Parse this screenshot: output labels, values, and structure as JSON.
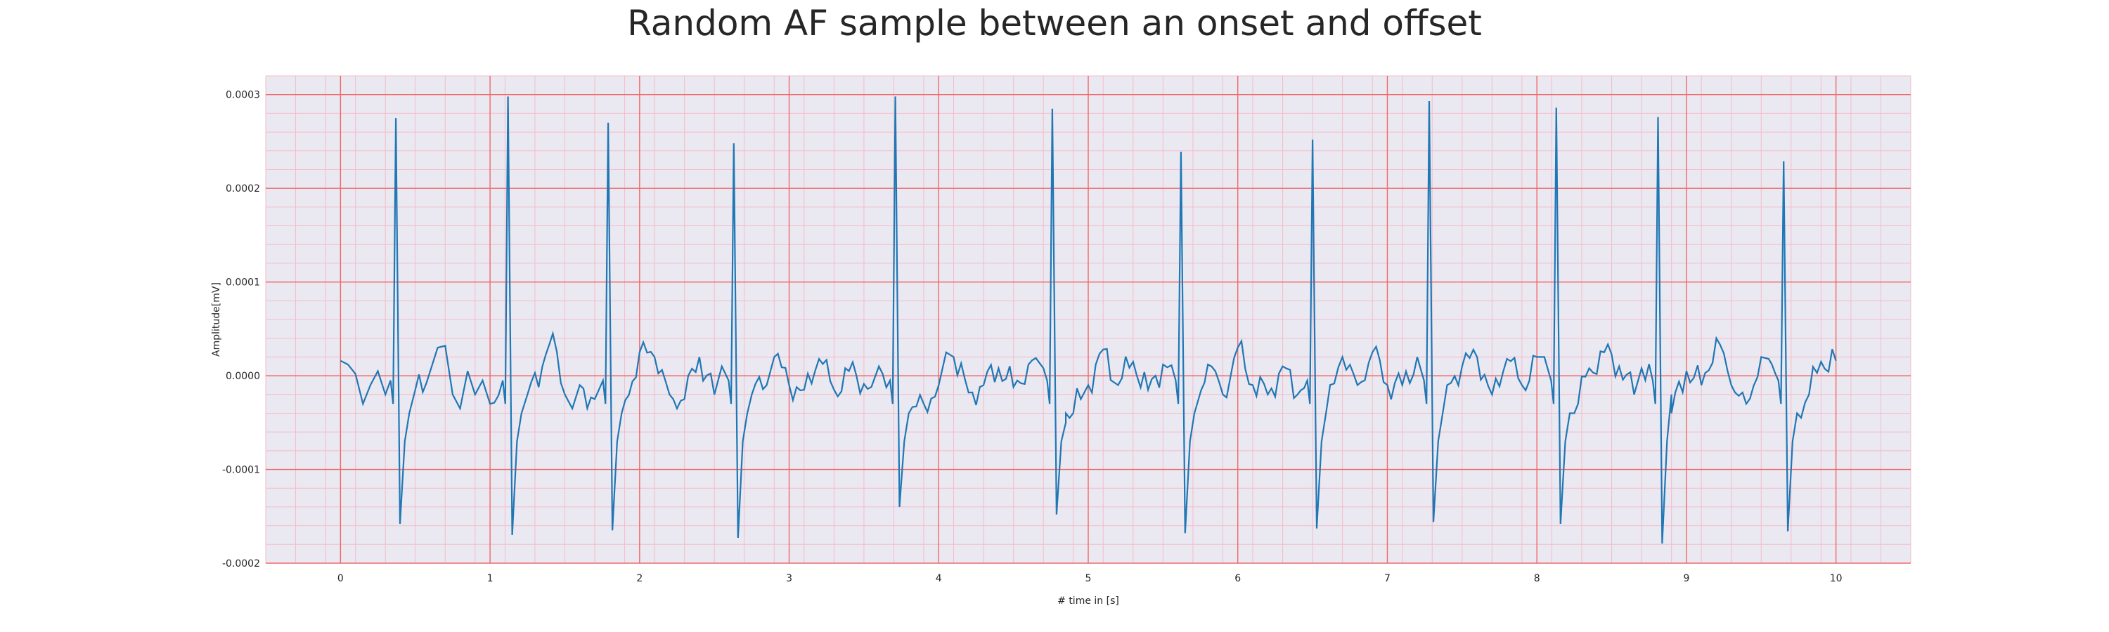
{
  "chart_data": {
    "type": "line",
    "title": "Random AF sample between an onset and offset",
    "xlabel": "# time in [s]",
    "ylabel": "Amplitude[mV]",
    "xlim": [
      -0.5,
      10.5
    ],
    "ylim": [
      -0.0002,
      0.00032
    ],
    "xticks": [
      0,
      1,
      2,
      3,
      4,
      5,
      6,
      7,
      8,
      9,
      10
    ],
    "xtick_labels": [
      "0",
      "1",
      "2",
      "3",
      "4",
      "5",
      "6",
      "7",
      "8",
      "9",
      "10"
    ],
    "yticks": [
      -0.0002,
      -0.0001,
      0.0,
      0.0001,
      0.0002,
      0.0003
    ],
    "ytick_labels": [
      "-0.0002",
      "-0.0001",
      "0.0000",
      "0.0001",
      "0.0002",
      "0.0003"
    ],
    "grid": true,
    "minor_grid": true,
    "background_color": "#eae8f1",
    "major_grid_color": "#f06868",
    "minor_grid_color": "#f5bcc8",
    "line_color": "#1f77b4",
    "beats": [
      {
        "t": 0.37,
        "peak": 0.000275,
        "trough": -0.000158
      },
      {
        "t": 1.12,
        "peak": 0.000298,
        "trough": -0.00017
      },
      {
        "t": 1.79,
        "peak": 0.00027,
        "trough": -0.000165
      },
      {
        "t": 2.63,
        "peak": 0.000248,
        "trough": -0.000173
      },
      {
        "t": 3.71,
        "peak": 0.000298,
        "trough": -0.00014
      },
      {
        "t": 4.76,
        "peak": 0.000285,
        "trough": -0.000148
      },
      {
        "t": 5.62,
        "peak": 0.000239,
        "trough": -0.000168
      },
      {
        "t": 6.5,
        "peak": 0.000252,
        "trough": -0.000163
      },
      {
        "t": 7.28,
        "peak": 0.000293,
        "trough": -0.000156
      },
      {
        "t": 8.13,
        "peak": 0.000286,
        "trough": -0.000158
      },
      {
        "t": 8.81,
        "peak": 0.000276,
        "trough": -0.000179
      },
      {
        "t": 9.65,
        "peak": 0.000229,
        "trough": -0.000166
      }
    ],
    "baseline_points": [
      [
        0.0,
        1.6e-05
      ],
      [
        0.05,
        1.2e-05
      ],
      [
        0.1,
        2e-06
      ],
      [
        0.15,
        -3e-05
      ],
      [
        0.2,
        -1e-05
      ],
      [
        0.25,
        5e-06
      ],
      [
        0.3,
        -2e-05
      ],
      [
        0.5,
        -1.5e-05
      ],
      [
        0.6,
        5e-06
      ],
      [
        0.65,
        3e-05
      ],
      [
        0.7,
        3.2e-05
      ],
      [
        0.75,
        -2e-05
      ],
      [
        0.8,
        -3.5e-05
      ],
      [
        0.85,
        5e-06
      ],
      [
        0.9,
        -2e-05
      ],
      [
        0.95,
        -5e-06
      ],
      [
        1.0,
        -3e-05
      ],
      [
        1.25,
        -2e-05
      ],
      [
        1.35,
        1e-05
      ],
      [
        1.42,
        4.5e-05
      ],
      [
        1.5,
        -2e-05
      ],
      [
        1.55,
        -3.5e-05
      ],
      [
        1.6,
        -1e-05
      ],
      [
        1.7,
        -2.5e-05
      ],
      [
        1.9,
        -2e-05
      ],
      [
        2.0,
        2.5e-05
      ],
      [
        2.1,
        2e-05
      ],
      [
        2.2,
        -2e-05
      ],
      [
        2.3,
        -2.5e-05
      ],
      [
        2.4,
        2e-05
      ],
      [
        2.5,
        -2e-05
      ],
      [
        2.55,
        1e-05
      ],
      [
        2.75,
        -2e-05
      ],
      [
        2.85,
        -1e-05
      ],
      [
        2.9,
        2e-05
      ],
      [
        3.0,
        -1e-05
      ],
      [
        3.1,
        -1.5e-05
      ],
      [
        3.2,
        1.8e-05
      ],
      [
        3.3,
        -1.5e-05
      ],
      [
        3.4,
        5e-06
      ],
      [
        3.55,
        -1.2e-05
      ],
      [
        3.6,
        1e-05
      ],
      [
        3.8,
        -4e-05
      ],
      [
        3.9,
        -3e-05
      ],
      [
        4.0,
        -1e-05
      ],
      [
        4.05,
        2.5e-05
      ],
      [
        4.1,
        2e-05
      ],
      [
        4.2,
        -1.8e-05
      ],
      [
        4.3,
        -1e-05
      ],
      [
        4.4,
        8e-06
      ],
      [
        4.5,
        -1.2e-05
      ],
      [
        4.6,
        1.2e-05
      ],
      [
        4.7,
        8e-06
      ],
      [
        4.85,
        -5e-05
      ],
      [
        4.95,
        -2.5e-05
      ],
      [
        5.0,
        -1e-05
      ],
      [
        5.1,
        2.8e-05
      ],
      [
        5.2,
        -1e-05
      ],
      [
        5.3,
        1.5e-05
      ],
      [
        5.4,
        -1.5e-05
      ],
      [
        5.5,
        1.2e-05
      ],
      [
        5.72,
        -2e-05
      ],
      [
        5.8,
        1.2e-05
      ],
      [
        5.9,
        -2e-05
      ],
      [
        6.0,
        3e-05
      ],
      [
        6.1,
        -1e-05
      ],
      [
        6.2,
        -2e-05
      ],
      [
        6.3,
        1e-05
      ],
      [
        6.4,
        -2e-05
      ],
      [
        6.6,
        -2e-05
      ],
      [
        6.7,
        2e-05
      ],
      [
        6.8,
        -1e-05
      ],
      [
        6.9,
        2.5e-05
      ],
      [
        7.0,
        -1e-05
      ],
      [
        7.1,
        -1e-05
      ],
      [
        7.2,
        2e-05
      ],
      [
        7.4,
        -1e-05
      ],
      [
        7.5,
        1e-05
      ],
      [
        7.6,
        2e-05
      ],
      [
        7.7,
        -2e-05
      ],
      [
        7.8,
        1.8e-05
      ],
      [
        7.9,
        -1e-05
      ],
      [
        8.0,
        2e-05
      ],
      [
        8.05,
        2e-05
      ],
      [
        8.25,
        -4e-05
      ],
      [
        8.35,
        8e-06
      ],
      [
        8.45,
        2.5e-05
      ],
      [
        8.55,
        1e-05
      ],
      [
        8.65,
        -2e-05
      ],
      [
        8.7,
        8e-06
      ],
      [
        8.9,
        -2e-05
      ],
      [
        9.0,
        5e-06
      ],
      [
        9.1,
        -1e-05
      ],
      [
        9.2,
        4e-05
      ],
      [
        9.3,
        -1e-05
      ],
      [
        9.4,
        -3e-05
      ],
      [
        9.5,
        2e-05
      ],
      [
        9.55,
        1.8e-05
      ],
      [
        9.75,
        -3e-05
      ],
      [
        9.82,
        -2e-05
      ],
      [
        9.9,
        1.5e-05
      ],
      [
        10.0,
        1.6e-05
      ]
    ]
  }
}
